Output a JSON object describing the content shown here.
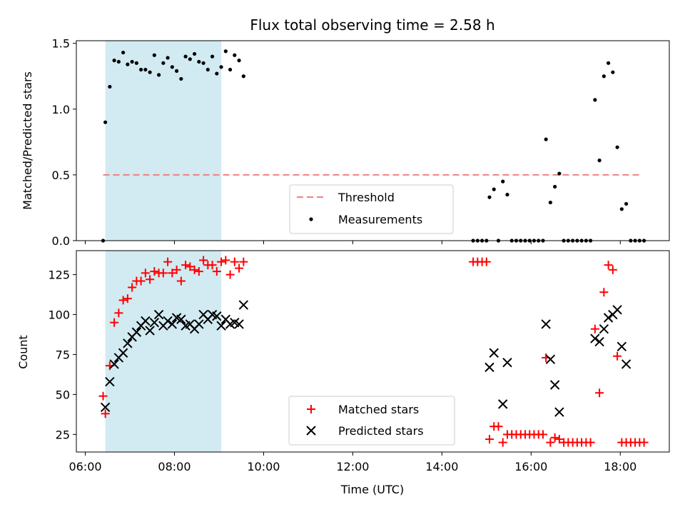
{
  "chart_data": [
    {
      "type": "scatter",
      "title": "Flux total observing time = 2.58 h",
      "xlabel": "",
      "ylabel": "Matched/Predicted stars",
      "xlim": [
        "05:48",
        "19:06"
      ],
      "ylim": [
        0,
        1.52
      ],
      "yticks": [
        "0.0",
        "0.5",
        "1.0",
        "1.5"
      ],
      "ytick_values": [
        0,
        0.5,
        1.0,
        1.5
      ],
      "grid": false,
      "legend_position": "lower-center",
      "shaded_region": {
        "from": "06:27",
        "to": "09:03",
        "color": "#add8e6"
      },
      "threshold": {
        "name": "Threshold",
        "value": 0.5,
        "from": "06:24",
        "to": "18:30",
        "color": "#f08080"
      },
      "series": [
        {
          "name": "Measurements",
          "marker": "dot",
          "color": "#000000",
          "points": [
            [
              "06:24",
              0.0
            ],
            [
              "06:27",
              0.9
            ],
            [
              "06:33",
              1.17
            ],
            [
              "06:39",
              1.37
            ],
            [
              "06:45",
              1.36
            ],
            [
              "06:51",
              1.43
            ],
            [
              "06:57",
              1.34
            ],
            [
              "07:03",
              1.36
            ],
            [
              "07:09",
              1.35
            ],
            [
              "07:15",
              1.3
            ],
            [
              "07:21",
              1.3
            ],
            [
              "07:27",
              1.28
            ],
            [
              "07:33",
              1.41
            ],
            [
              "07:39",
              1.26
            ],
            [
              "07:45",
              1.35
            ],
            [
              "07:51",
              1.39
            ],
            [
              "07:57",
              1.32
            ],
            [
              "08:03",
              1.29
            ],
            [
              "08:09",
              1.23
            ],
            [
              "08:15",
              1.4
            ],
            [
              "08:21",
              1.38
            ],
            [
              "08:27",
              1.42
            ],
            [
              "08:33",
              1.36
            ],
            [
              "08:39",
              1.35
            ],
            [
              "08:45",
              1.3
            ],
            [
              "08:51",
              1.4
            ],
            [
              "08:57",
              1.27
            ],
            [
              "09:03",
              1.32
            ],
            [
              "09:09",
              1.44
            ],
            [
              "09:15",
              1.3
            ],
            [
              "09:21",
              1.41
            ],
            [
              "09:27",
              1.37
            ],
            [
              "09:33",
              1.25
            ],
            [
              "14:42",
              0.0
            ],
            [
              "14:48",
              0.0
            ],
            [
              "14:54",
              0.0
            ],
            [
              "15:00",
              0.0
            ],
            [
              "15:04",
              0.33
            ],
            [
              "15:10",
              0.39
            ],
            [
              "15:16",
              0.0
            ],
            [
              "15:22",
              0.45
            ],
            [
              "15:28",
              0.35
            ],
            [
              "15:34",
              0.0
            ],
            [
              "15:40",
              0.0
            ],
            [
              "15:46",
              0.0
            ],
            [
              "15:52",
              0.0
            ],
            [
              "15:58",
              0.0
            ],
            [
              "16:04",
              0.0
            ],
            [
              "16:10",
              0.0
            ],
            [
              "16:16",
              0.0
            ],
            [
              "16:20",
              0.77
            ],
            [
              "16:26",
              0.29
            ],
            [
              "16:32",
              0.41
            ],
            [
              "16:38",
              0.51
            ],
            [
              "16:44",
              0.0
            ],
            [
              "16:50",
              0.0
            ],
            [
              "16:56",
              0.0
            ],
            [
              "17:02",
              0.0
            ],
            [
              "17:08",
              0.0
            ],
            [
              "17:14",
              0.0
            ],
            [
              "17:20",
              0.0
            ],
            [
              "17:26",
              1.07
            ],
            [
              "17:32",
              0.61
            ],
            [
              "17:38",
              1.25
            ],
            [
              "17:44",
              1.35
            ],
            [
              "17:50",
              1.28
            ],
            [
              "17:56",
              0.71
            ],
            [
              "18:02",
              0.24
            ],
            [
              "18:08",
              0.28
            ],
            [
              "18:14",
              0.0
            ],
            [
              "18:20",
              0.0
            ],
            [
              "18:26",
              0.0
            ],
            [
              "18:32",
              0.0
            ]
          ]
        }
      ],
      "legend": [
        {
          "name": "Threshold",
          "marker": "dashed-line",
          "color": "#f08080"
        },
        {
          "name": "Measurements",
          "marker": "dot",
          "color": "#000000"
        }
      ]
    },
    {
      "type": "scatter",
      "title": "",
      "xlabel": "Time (UTC)",
      "ylabel": "Count",
      "xlim": [
        "05:48",
        "19:06"
      ],
      "ylim": [
        14,
        140
      ],
      "yticks": [
        "25",
        "50",
        "75",
        "100",
        "125"
      ],
      "ytick_values": [
        25,
        50,
        75,
        100,
        125
      ],
      "xticks": [
        "06:00",
        "08:00",
        "10:00",
        "12:00",
        "14:00",
        "16:00",
        "18:00"
      ],
      "grid": false,
      "legend_position": "lower-center",
      "shaded_region": {
        "from": "06:27",
        "to": "09:03",
        "color": "#add8e6"
      },
      "series": [
        {
          "name": "Matched stars",
          "marker": "plus",
          "color": "#ff0000",
          "points": [
            [
              "06:24",
              49
            ],
            [
              "06:27",
              38
            ],
            [
              "06:33",
              68
            ],
            [
              "06:39",
              95
            ],
            [
              "06:45",
              101
            ],
            [
              "06:51",
              109
            ],
            [
              "06:57",
              110
            ],
            [
              "07:03",
              117
            ],
            [
              "07:09",
              121
            ],
            [
              "07:15",
              121
            ],
            [
              "07:21",
              126
            ],
            [
              "07:27",
              122
            ],
            [
              "07:33",
              127
            ],
            [
              "07:39",
              126
            ],
            [
              "07:45",
              126
            ],
            [
              "07:51",
              133
            ],
            [
              "07:57",
              126
            ],
            [
              "08:03",
              128
            ],
            [
              "08:09",
              121
            ],
            [
              "08:15",
              131
            ],
            [
              "08:21",
              130
            ],
            [
              "08:27",
              128
            ],
            [
              "08:33",
              127
            ],
            [
              "08:39",
              134
            ],
            [
              "08:45",
              131
            ],
            [
              "08:51",
              131
            ],
            [
              "08:57",
              127
            ],
            [
              "09:03",
              133
            ],
            [
              "09:09",
              134
            ],
            [
              "09:15",
              125
            ],
            [
              "09:21",
              133
            ],
            [
              "09:27",
              129
            ],
            [
              "09:33",
              133
            ],
            [
              "14:42",
              133
            ],
            [
              "14:48",
              133
            ],
            [
              "14:54",
              133
            ],
            [
              "15:00",
              133
            ],
            [
              "15:04",
              22
            ],
            [
              "15:10",
              30
            ],
            [
              "15:16",
              30
            ],
            [
              "15:22",
              20
            ],
            [
              "15:28",
              25
            ],
            [
              "15:34",
              25
            ],
            [
              "15:40",
              25
            ],
            [
              "15:46",
              25
            ],
            [
              "15:52",
              25
            ],
            [
              "15:58",
              25
            ],
            [
              "16:04",
              25
            ],
            [
              "16:10",
              25
            ],
            [
              "16:16",
              25
            ],
            [
              "16:20",
              73
            ],
            [
              "16:26",
              20
            ],
            [
              "16:32",
              23
            ],
            [
              "16:38",
              22
            ],
            [
              "16:44",
              20
            ],
            [
              "16:50",
              20
            ],
            [
              "16:56",
              20
            ],
            [
              "17:02",
              20
            ],
            [
              "17:08",
              20
            ],
            [
              "17:14",
              20
            ],
            [
              "17:20",
              20
            ],
            [
              "17:26",
              91
            ],
            [
              "17:32",
              51
            ],
            [
              "17:38",
              114
            ],
            [
              "17:44",
              131
            ],
            [
              "17:50",
              128
            ],
            [
              "17:56",
              74
            ],
            [
              "18:02",
              20
            ],
            [
              "18:08",
              20
            ],
            [
              "18:14",
              20
            ],
            [
              "18:20",
              20
            ],
            [
              "18:26",
              20
            ],
            [
              "18:32",
              20
            ]
          ]
        },
        {
          "name": "Predicted stars",
          "marker": "x",
          "color": "#000000",
          "points": [
            [
              "06:27",
              42
            ],
            [
              "06:33",
              58
            ],
            [
              "06:39",
              69
            ],
            [
              "06:45",
              73
            ],
            [
              "06:51",
              76
            ],
            [
              "06:57",
              82
            ],
            [
              "07:03",
              86
            ],
            [
              "07:09",
              89
            ],
            [
              "07:15",
              93
            ],
            [
              "07:21",
              96
            ],
            [
              "07:27",
              90
            ],
            [
              "07:33",
              95
            ],
            [
              "07:39",
              100
            ],
            [
              "07:45",
              93
            ],
            [
              "07:51",
              96
            ],
            [
              "07:57",
              94
            ],
            [
              "08:03",
              98
            ],
            [
              "08:09",
              97
            ],
            [
              "08:15",
              93
            ],
            [
              "08:21",
              94
            ],
            [
              "08:27",
              91
            ],
            [
              "08:33",
              94
            ],
            [
              "08:39",
              100
            ],
            [
              "08:45",
              97
            ],
            [
              "08:51",
              100
            ],
            [
              "08:57",
              99
            ],
            [
              "09:03",
              93
            ],
            [
              "09:09",
              97
            ],
            [
              "09:15",
              94
            ],
            [
              "09:21",
              95
            ],
            [
              "09:27",
              94
            ],
            [
              "09:33",
              106
            ],
            [
              "15:04",
              67
            ],
            [
              "15:10",
              76
            ],
            [
              "15:22",
              44
            ],
            [
              "15:28",
              70
            ],
            [
              "16:20",
              94
            ],
            [
              "16:26",
              72
            ],
            [
              "16:32",
              56
            ],
            [
              "16:38",
              39
            ],
            [
              "17:26",
              85
            ],
            [
              "17:32",
              83
            ],
            [
              "17:38",
              91
            ],
            [
              "17:44",
              98
            ],
            [
              "17:50",
              100
            ],
            [
              "17:56",
              103
            ],
            [
              "18:02",
              80
            ],
            [
              "18:08",
              69
            ]
          ]
        }
      ],
      "legend": [
        {
          "name": "Matched stars",
          "marker": "plus",
          "color": "#ff0000"
        },
        {
          "name": "Predicted stars",
          "marker": "x",
          "color": "#000000"
        }
      ]
    }
  ]
}
